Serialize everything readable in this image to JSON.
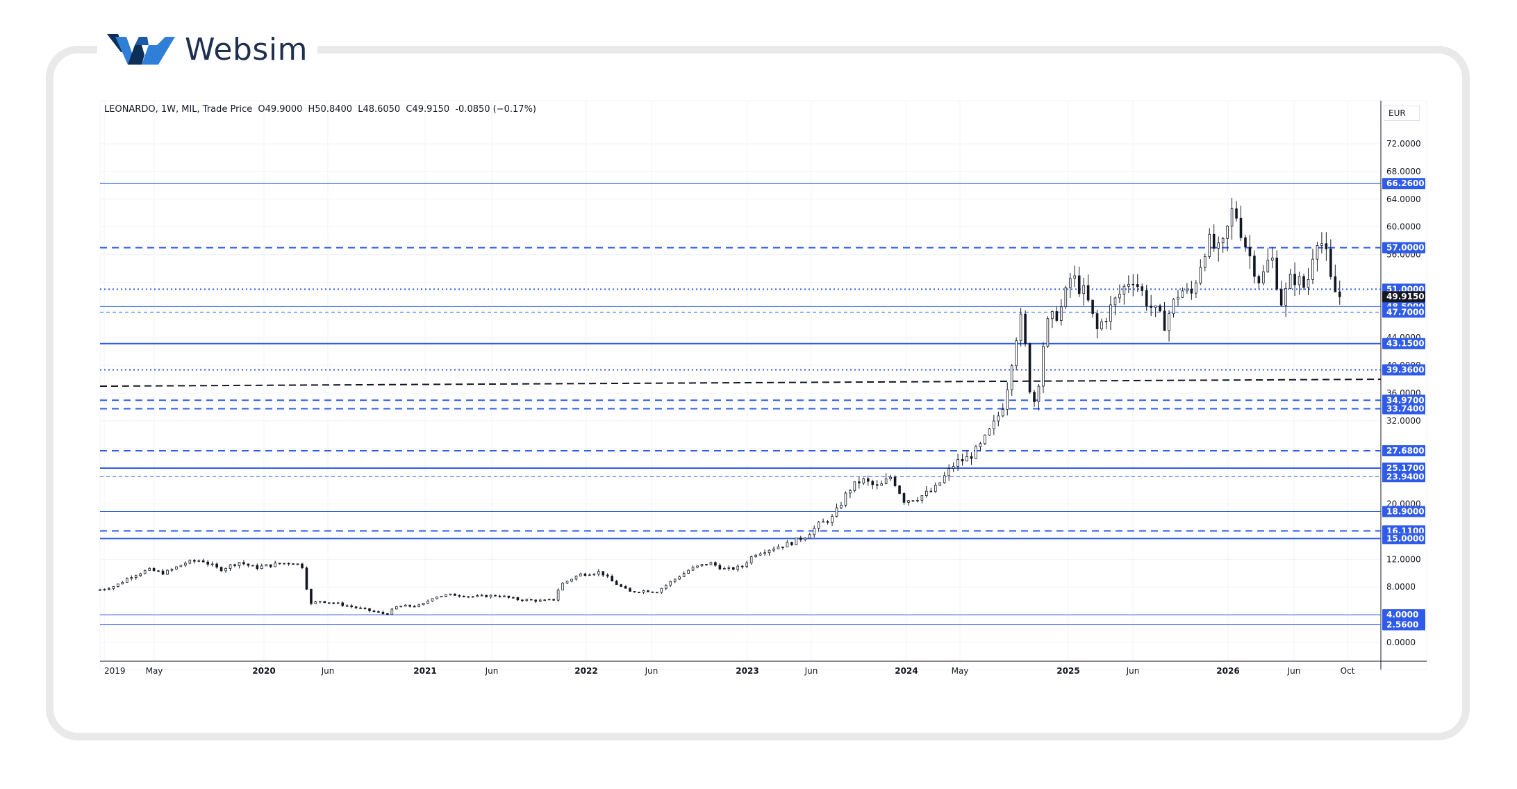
{
  "brand": {
    "name": "Websim",
    "colors": {
      "dark": "#0b2f57",
      "accent": "#2f7fd8"
    }
  },
  "legend": {
    "symbol": "LEONARDO, 1W, MIL, Trade Price",
    "open": "O49.9000",
    "high": "H50.8400",
    "low": "L48.6050",
    "close": "C49.9150",
    "change": "-0.0850 (−0.17%)"
  },
  "currency": "EUR",
  "chart_data": {
    "type": "candlestick",
    "symbol": "LEONARDO",
    "interval": "1W",
    "exchange": "MIL",
    "ylim": [
      -2,
      76
    ],
    "y_ticks": [
      "72.0000",
      "68.0000",
      "64.0000",
      "60.0000",
      "56.0000",
      "44.0000",
      "40.0000",
      "36.0000",
      "32.0000",
      "20.0000",
      "12.0000",
      "8.0000",
      "0.0000"
    ],
    "x_ticks": [
      "2019",
      "May",
      "2020",
      "Jun",
      "2021",
      "Jun",
      "2022",
      "Jun",
      "2023",
      "Jun",
      "2024",
      "May",
      "2025",
      "Jun",
      "2026",
      "Jun",
      "Oct"
    ],
    "last_price": {
      "value": 49.915,
      "label": "49.9150"
    },
    "levels": [
      {
        "value": 66.26,
        "label": "66.2600",
        "style": "solid"
      },
      {
        "value": 57.0,
        "label": "57.0000",
        "style": "dashed"
      },
      {
        "value": 51.0,
        "label": "51.0000",
        "style": "dotted"
      },
      {
        "value": 48.5,
        "label": "48.5000",
        "style": "solid"
      },
      {
        "value": 47.7,
        "label": "47.7000",
        "style": "fine-dashed"
      },
      {
        "value": 43.15,
        "label": "43.1500",
        "style": "solid-thick"
      },
      {
        "value": 39.36,
        "label": "39.3600",
        "style": "dotted"
      },
      {
        "value": 34.97,
        "label": "34.9700",
        "style": "dashed"
      },
      {
        "value": 33.74,
        "label": "33.7400",
        "style": "dashed"
      },
      {
        "value": 27.68,
        "label": "27.6800",
        "style": "dashed"
      },
      {
        "value": 25.17,
        "label": "25.1700",
        "style": "solid-thick"
      },
      {
        "value": 23.94,
        "label": "23.9400",
        "style": "fine-dashed"
      },
      {
        "value": 18.9,
        "label": "18.9000",
        "style": "solid"
      },
      {
        "value": 16.11,
        "label": "16.1100",
        "style": "dashed"
      },
      {
        "value": 15.0,
        "label": "15.0000",
        "style": "solid-thick"
      },
      {
        "value": 4.0,
        "label": "4.0000",
        "style": "solid"
      },
      {
        "value": 2.56,
        "label": "2.5600",
        "style": "solid"
      }
    ],
    "trendline": {
      "start": 37.0,
      "end": 38.0,
      "style": "black-dashed"
    },
    "price_path": [
      [
        0,
        7.6
      ],
      [
        15,
        8.2
      ],
      [
        28,
        9.5
      ],
      [
        45,
        10.5
      ],
      [
        60,
        10.0
      ],
      [
        80,
        11.5
      ],
      [
        95,
        11.9
      ],
      [
        112,
        10.5
      ],
      [
        130,
        11.6
      ],
      [
        145,
        10.8
      ],
      [
        165,
        11.3
      ],
      [
        180,
        11.6
      ],
      [
        190,
        10.9
      ],
      [
        193,
        8.0
      ],
      [
        197,
        5.5
      ],
      [
        205,
        6.0
      ],
      [
        222,
        5.6
      ],
      [
        240,
        5.0
      ],
      [
        260,
        4.3
      ],
      [
        268,
        4.1
      ],
      [
        278,
        5.2
      ],
      [
        300,
        5.3
      ],
      [
        312,
        6.6
      ],
      [
        330,
        6.9
      ],
      [
        350,
        6.6
      ],
      [
        372,
        6.8
      ],
      [
        390,
        6.2
      ],
      [
        415,
        6.0
      ],
      [
        425,
        6.2
      ],
      [
        430,
        8.3
      ],
      [
        448,
        9.8
      ],
      [
        468,
        10.2
      ],
      [
        478,
        8.9
      ],
      [
        495,
        7.3
      ],
      [
        510,
        7.5
      ],
      [
        520,
        7.3
      ],
      [
        535,
        8.9
      ],
      [
        552,
        10.6
      ],
      [
        570,
        11.5
      ],
      [
        585,
        10.5
      ],
      [
        600,
        10.9
      ],
      [
        612,
        12.8
      ],
      [
        628,
        13.6
      ],
      [
        645,
        14.3
      ],
      [
        660,
        15.4
      ],
      [
        672,
        17.0
      ],
      [
        685,
        18.0
      ],
      [
        700,
        22.0
      ],
      [
        712,
        23.5
      ],
      [
        728,
        22.3
      ],
      [
        740,
        24.0
      ],
      [
        752,
        20.5
      ],
      [
        766,
        21.0
      ],
      [
        780,
        22.0
      ],
      [
        790,
        24.0
      ],
      [
        800,
        26.0
      ],
      [
        810,
        26.5
      ],
      [
        822,
        28.0
      ],
      [
        838,
        32.0
      ],
      [
        846,
        35.0
      ],
      [
        856,
        44.0
      ],
      [
        862,
        47.0
      ],
      [
        870,
        36.0
      ],
      [
        875,
        34.5
      ],
      [
        884,
        45.5
      ],
      [
        900,
        48.5
      ],
      [
        908,
        53.0
      ],
      [
        922,
        50.0
      ],
      [
        932,
        45.0
      ],
      [
        948,
        49.0
      ],
      [
        965,
        53.0
      ],
      [
        980,
        49.0
      ],
      [
        995,
        46.0
      ],
      [
        1010,
        51.0
      ],
      [
        1020,
        50.0
      ],
      [
        1035,
        58.0
      ],
      [
        1048,
        56.0
      ],
      [
        1060,
        63.0
      ],
      [
        1072,
        57.0
      ],
      [
        1085,
        52.0
      ],
      [
        1095,
        56.0
      ],
      [
        1105,
        49.0
      ],
      [
        1115,
        53.0
      ],
      [
        1128,
        51.0
      ],
      [
        1137,
        59.0
      ],
      [
        1145,
        57.0
      ],
      [
        1152,
        51.0
      ],
      [
        1160,
        49.9
      ]
    ]
  }
}
